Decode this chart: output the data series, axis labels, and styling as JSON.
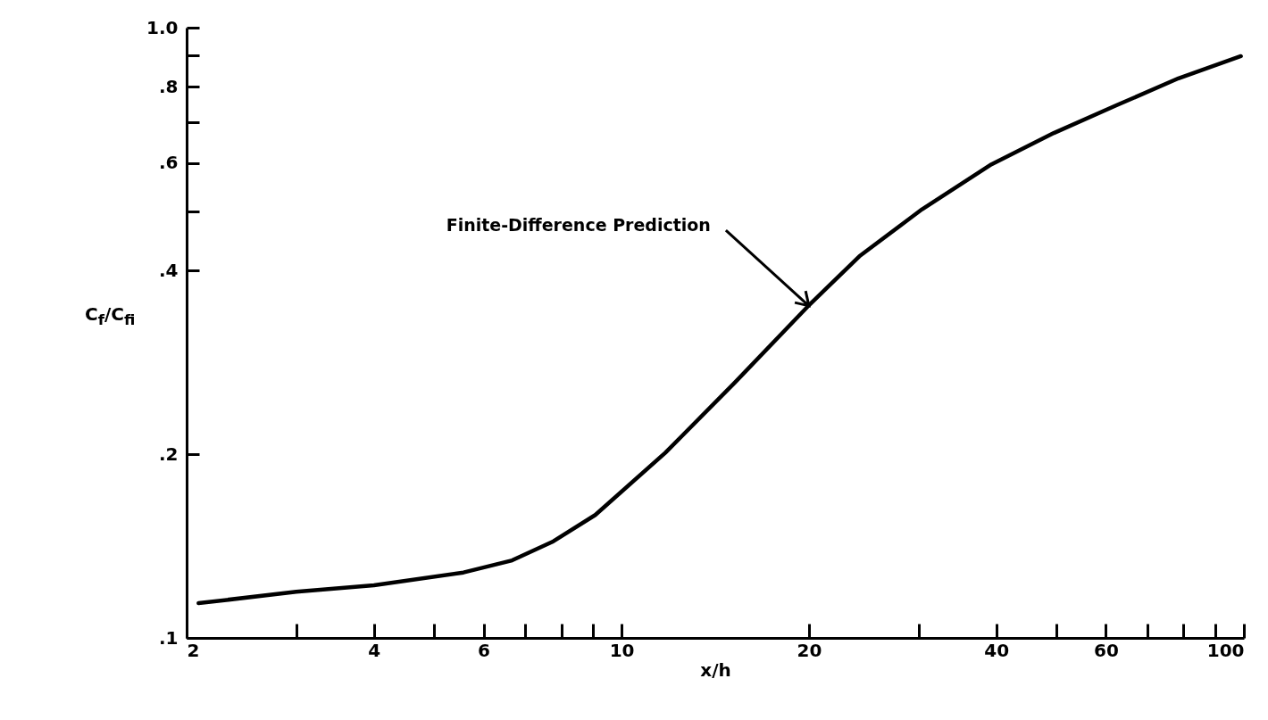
{
  "chart_data": {
    "type": "line",
    "xlabel": "x/h",
    "ylabel": "C$_{f}$/C$_{fi}$",
    "log": "xy",
    "grid": false,
    "marker": "none",
    "line_style": "solid",
    "xlim": [
      2,
      100
    ],
    "ylim": [
      0.1,
      1.0
    ],
    "xticks": [
      2,
      {
        "value": 3,
        "label": null
      },
      4,
      {
        "value": 5,
        "label": null
      },
      6,
      {
        "value": 7,
        "label": null
      },
      {
        "value": 8,
        "label": null
      },
      {
        "value": 9,
        "label": null
      },
      10,
      20,
      {
        "value": 30,
        "label": null
      },
      40,
      {
        "value": 50,
        "label": null
      },
      60,
      {
        "value": 70,
        "label": null
      },
      {
        "value": 80,
        "label": null
      },
      {
        "value": 90,
        "label": null
      },
      100
    ],
    "yticks": [
      {
        "value": 0.1,
        "label": ".1"
      },
      {
        "value": 0.2,
        "label": ".2"
      },
      {
        "value": 0.4,
        "label": ".4"
      },
      {
        "value": 0.5,
        "label": null
      },
      {
        "value": 0.6,
        "label": ".6"
      },
      {
        "value": 0.7,
        "label": null
      },
      {
        "value": 0.8,
        "label": ".8"
      },
      {
        "value": 0.9,
        "label": null
      },
      {
        "value": 1.0,
        "label": "1.0"
      }
    ],
    "x": [
      2.09,
      3.0,
      4.0,
      5.57,
      6.67,
      7.77,
      9.07,
      11.75,
      15.2,
      19.9,
      24.1,
      30.4,
      39.3,
      49.5,
      62.4,
      78.5,
      98.9
    ],
    "series": [
      {
        "color": "#000000",
        "values": [
          0.114,
          0.119,
          0.122,
          0.128,
          0.134,
          0.144,
          0.159,
          0.201,
          0.262,
          0.349,
          0.422,
          0.504,
          0.597,
          0.672,
          0.746,
          0.826,
          0.898
        ]
      }
    ],
    "annotations": [
      {
        "text": "Finite-Difference Prediction",
        "x": 20,
        "y": 0.35
      }
    ]
  }
}
